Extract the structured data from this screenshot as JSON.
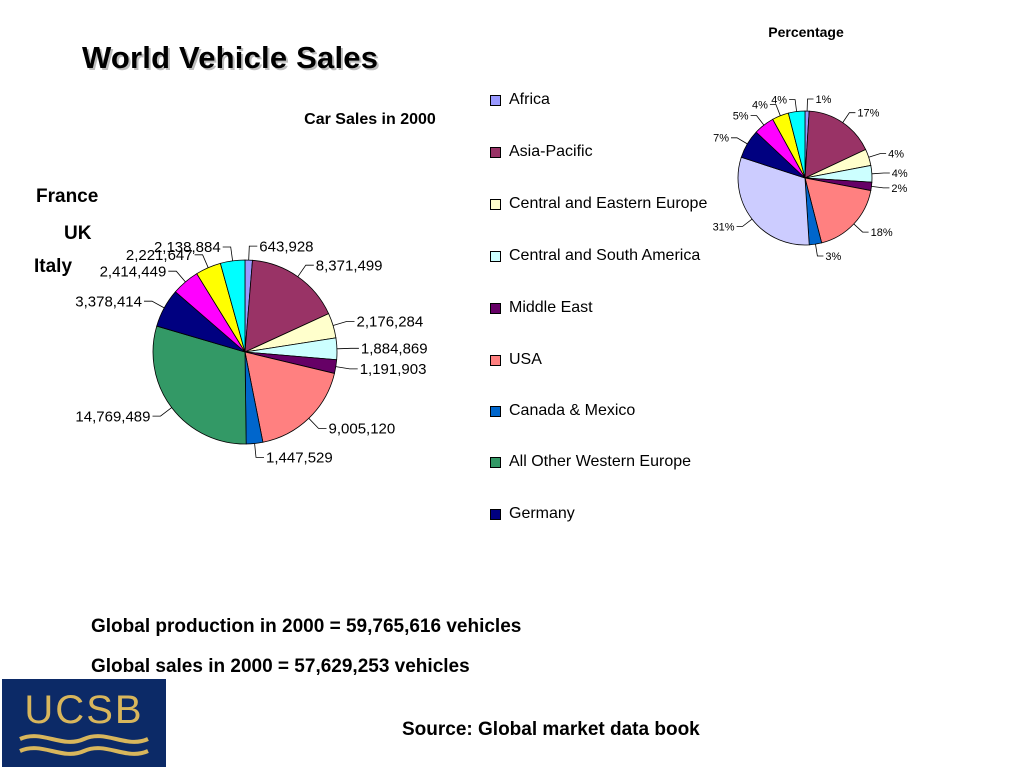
{
  "slide": {
    "title": "World Vehicle Sales",
    "labels": {
      "france": "France",
      "uk": "UK",
      "italy": "Italy"
    },
    "footer": {
      "production": "Global production in 2000 = 59,765,616 vehicles",
      "sales": "Global sales in 2000 = 57,629,253 vehicles",
      "source": "Source: Global market data book"
    },
    "logo_text": "UCSB"
  },
  "chart_data": [
    {
      "type": "pie",
      "title": "Car Sales in 2000",
      "categories": [
        "Africa",
        "Asia-Pacific",
        "Central and Eastern Europe",
        "Central and South America",
        "Middle East",
        "USA",
        "Canada & Mexico",
        "All Other Western Europe",
        "Germany",
        "Italy",
        "UK",
        "France"
      ],
      "values": [
        643928,
        8371499,
        2176284,
        1884869,
        1191903,
        9005120,
        1447529,
        14769489,
        3378414,
        2414449,
        2221647,
        2138884
      ],
      "data_labels": [
        "643,928",
        "8,371,499",
        "2,176,284",
        "1,884,869",
        "1,191,903",
        "9,005,120",
        "1,447,529",
        "14,769,489",
        "3,378,414",
        "2,414,449",
        "2,221,647",
        "2,138,884"
      ],
      "colors": [
        "#9999ff",
        "#993366",
        "#ffffcc",
        "#ccffff",
        "#660066",
        "#ff8080",
        "#0066cc",
        "#339966",
        "#000080",
        "#ff00ff",
        "#ffff00",
        "#00ffff"
      ],
      "legend": {
        "placement": "right",
        "entries": [
          "Africa",
          "Asia-Pacific",
          "Central and Eastern Europe",
          "Central and South America",
          "Middle East",
          "USA",
          "Canada & Mexico",
          "All Other Western Europe",
          "Germany"
        ]
      }
    },
    {
      "type": "pie",
      "title": "Percentage",
      "categories": [
        "Africa",
        "Asia-Pacific",
        "Central and Eastern Europe",
        "Central and South America",
        "Middle East",
        "USA",
        "Canada & Mexico",
        "All Other Western Europe",
        "Germany",
        "Italy",
        "UK",
        "France"
      ],
      "values": [
        1,
        17,
        4,
        4,
        2,
        18,
        3,
        31,
        7,
        5,
        4,
        4
      ],
      "data_labels": [
        "1%",
        "17%",
        "4%",
        "4%",
        "2%",
        "18%",
        "3%",
        "31%",
        "7%",
        "5%",
        "4%",
        "4%"
      ],
      "colors": [
        "#9999ff",
        "#993366",
        "#ffffcc",
        "#ccffff",
        "#660066",
        "#ff8080",
        "#0066cc",
        "#ccccff",
        "#000080",
        "#ff00ff",
        "#ffff00",
        "#00ffff"
      ]
    }
  ]
}
